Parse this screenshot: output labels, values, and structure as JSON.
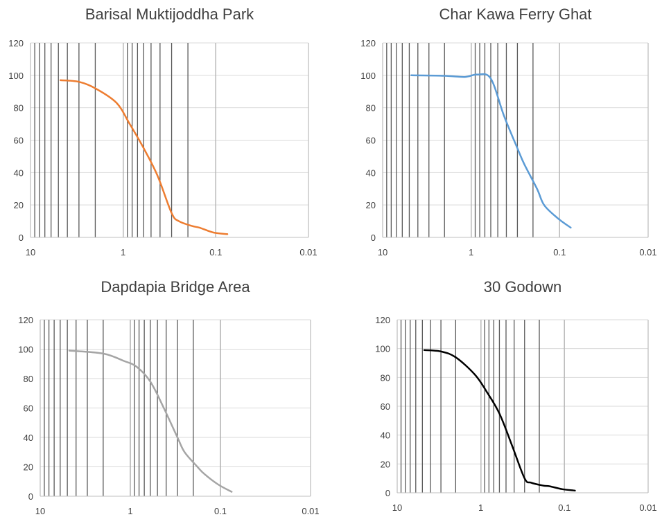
{
  "chart_data": [
    {
      "type": "line",
      "title": "Barisal Muktijoddha Park",
      "xscale": "log",
      "xreversed": true,
      "xlim": [
        10,
        0.01
      ],
      "xticks": [
        "10",
        "1",
        "0.1",
        "0.01"
      ],
      "ylim": [
        0,
        120
      ],
      "yticks": [
        "0",
        "20",
        "40",
        "60",
        "80",
        "100",
        "120"
      ],
      "grid": "vertical log gridlines and horizontal gridlines every 20",
      "legend": "none",
      "series": [
        {
          "color": "#ED7D31",
          "x": [
            4.75,
            3.0,
            2.0,
            1.18,
            0.85,
            0.6,
            0.425,
            0.3,
            0.25,
            0.18,
            0.15,
            0.106,
            0.075
          ],
          "y": [
            97,
            96,
            92,
            83,
            70,
            55,
            38,
            15,
            10,
            7,
            6,
            3,
            2
          ]
        }
      ]
    },
    {
      "type": "line",
      "title": "Char Kawa Ferry Ghat",
      "xscale": "log",
      "xreversed": true,
      "xlim": [
        10,
        0.01
      ],
      "xticks": [
        "10",
        "1",
        "0.1",
        "0.01"
      ],
      "ylim": [
        0,
        120
      ],
      "yticks": [
        "0",
        "20",
        "40",
        "60",
        "80",
        "100",
        "120"
      ],
      "grid": "vertical log gridlines and horizontal gridlines every 20",
      "legend": "none",
      "series": [
        {
          "color": "#5B9BD5",
          "x": [
            4.75,
            2.0,
            1.18,
            0.85,
            0.6,
            0.425,
            0.3,
            0.25,
            0.18,
            0.15,
            0.106,
            0.075
          ],
          "y": [
            100,
            99.7,
            99,
            100.5,
            98,
            75,
            55,
            45,
            30,
            20,
            12,
            6
          ]
        }
      ]
    },
    {
      "type": "line",
      "title": "Dapdapia Bridge Area",
      "xscale": "log",
      "xreversed": true,
      "xlim": [
        10,
        0.01
      ],
      "xticks": [
        "10",
        "1",
        "0.1",
        "0.01"
      ],
      "ylim": [
        0,
        120
      ],
      "yticks": [
        "0",
        "20",
        "40",
        "60",
        "80",
        "100",
        "120"
      ],
      "grid": "vertical log gridlines and horizontal gridlines every 20",
      "legend": "none",
      "series": [
        {
          "color": "#A5A5A5",
          "x": [
            4.75,
            2.0,
            1.18,
            0.85,
            0.6,
            0.425,
            0.3,
            0.25,
            0.18,
            0.15,
            0.106,
            0.075
          ],
          "y": [
            99,
            97,
            92,
            88,
            78,
            60,
            40,
            30,
            20,
            15,
            8,
            3
          ]
        }
      ]
    },
    {
      "type": "line",
      "title": "30 Godown",
      "xscale": "log",
      "xreversed": true,
      "xlim": [
        10,
        0.01
      ],
      "xticks": [
        "10",
        "1",
        "0.1",
        "0.01"
      ],
      "ylim": [
        0,
        120
      ],
      "yticks": [
        "0",
        "20",
        "40",
        "60",
        "80",
        "100",
        "120"
      ],
      "grid": "vertical log gridlines and horizontal gridlines every 20",
      "legend": "none",
      "series": [
        {
          "color": "#000000",
          "x": [
            4.75,
            3.0,
            2.0,
            1.18,
            0.85,
            0.6,
            0.425,
            0.3,
            0.25,
            0.18,
            0.15,
            0.106,
            0.075
          ],
          "y": [
            99,
            98,
            94,
            82,
            70,
            55,
            33,
            10,
            7,
            5,
            4.5,
            2.5,
            1.5
          ]
        }
      ]
    }
  ]
}
